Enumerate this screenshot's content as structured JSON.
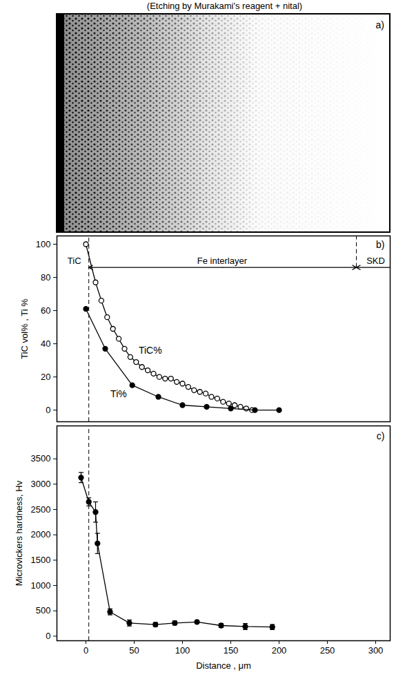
{
  "title": "(Etching by Murakami's reagent + nital)",
  "image_panel": {
    "label": "a)"
  },
  "chart_data": [
    {
      "type": "line",
      "label": "b)",
      "xlim": [
        -30,
        315
      ],
      "ylim": [
        -7,
        105
      ],
      "yticks": [
        0,
        20,
        40,
        60,
        80,
        100
      ],
      "y_label": "TiC vol% , Ti %",
      "tick_labels": "y",
      "series": [
        {
          "name": "TiC%",
          "color": "#000000",
          "marker": "open circle",
          "line_style": "solid",
          "x": [
            0,
            10,
            16,
            22,
            28,
            34,
            40,
            46,
            52,
            58,
            64,
            70,
            76,
            82,
            88,
            94,
            100,
            106,
            112,
            118,
            124,
            130,
            136,
            142,
            148,
            154,
            160,
            166,
            172
          ],
          "values": [
            100,
            77,
            66,
            56,
            49,
            43,
            37,
            32,
            29,
            26,
            24,
            22,
            20,
            19,
            19,
            17,
            16,
            14,
            12,
            11,
            10,
            8,
            7,
            5,
            4,
            3,
            2,
            1,
            0
          ]
        },
        {
          "name": "Ti%",
          "color": "#000000",
          "marker": "filled circle",
          "line_style": "solid",
          "x": [
            0,
            20,
            48,
            75,
            100,
            125,
            150,
            175,
            200
          ],
          "values": [
            61,
            37,
            15,
            8,
            3,
            2,
            1,
            0,
            0
          ]
        }
      ],
      "boundaries": [
        {
          "x": 3,
          "line_style": "dashed"
        },
        {
          "x": 280,
          "line_style": "dashed",
          "y_from": 86
        }
      ],
      "annotations": [
        {
          "text": "TiC",
          "x": -12,
          "y": 86
        },
        {
          "text": "Fe interlayer",
          "x": 141,
          "y": 86
        },
        {
          "text": "SKD",
          "x": 300,
          "y": 86
        }
      ]
    },
    {
      "type": "line",
      "label": "c)",
      "xlim": [
        -30,
        315
      ],
      "xticks": [
        0,
        50,
        100,
        150,
        200,
        250,
        300
      ],
      "ylim": [
        -90,
        4150
      ],
      "yticks": [
        0,
        500,
        1000,
        1500,
        2000,
        2500,
        3000,
        3500
      ],
      "x_label": "Distance , μm",
      "y_label": "Microvickers hardness, Hv",
      "series": [
        {
          "color": "#000000",
          "marker": "filled circle",
          "line_style": "solid",
          "x": [
            -5,
            3,
            10,
            12,
            25,
            45,
            72,
            92,
            115,
            140,
            165,
            193
          ],
          "values": [
            3130,
            2650,
            2450,
            1830,
            480,
            260,
            230,
            260,
            280,
            210,
            190,
            180
          ],
          "errors": [
            100,
            80,
            200,
            200,
            60,
            60,
            40,
            40,
            30,
            40,
            60,
            50
          ]
        }
      ],
      "boundaries": [
        {
          "x": 3,
          "line_style": "dashed"
        }
      ]
    }
  ]
}
